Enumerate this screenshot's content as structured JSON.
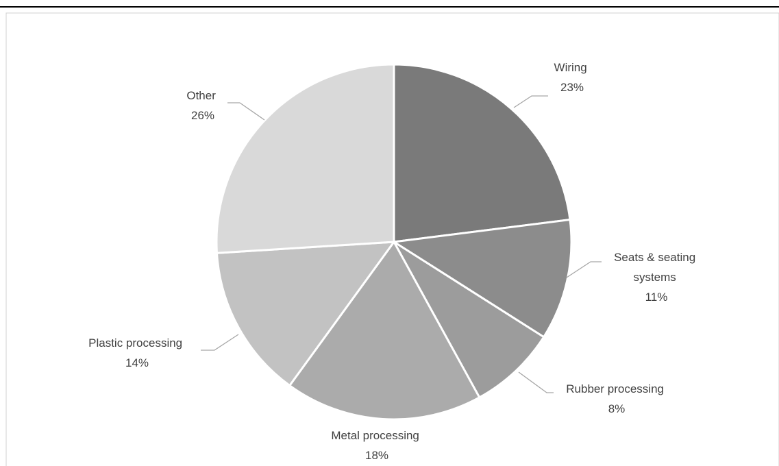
{
  "chart_data": {
    "type": "pie",
    "title": "",
    "slices": [
      {
        "label_lines": [
          "Wiring"
        ],
        "pct_label": "23%",
        "value": 23,
        "color": "#7a7a7a"
      },
      {
        "label_lines": [
          "Seats & seating",
          "systems"
        ],
        "pct_label": "11%",
        "value": 11,
        "color": "#8c8c8c"
      },
      {
        "label_lines": [
          "Rubber processing"
        ],
        "pct_label": "8%",
        "value": 8,
        "color": "#9c9c9c"
      },
      {
        "label_lines": [
          "Metal processing"
        ],
        "pct_label": "18%",
        "value": 18,
        "color": "#ababab"
      },
      {
        "label_lines": [
          "Plastic processing"
        ],
        "pct_label": "14%",
        "value": 14,
        "color": "#c2c2c2"
      },
      {
        "label_lines": [
          "Other"
        ],
        "pct_label": "26%",
        "value": 26,
        "color": "#d9d9d9"
      }
    ],
    "legend": "none",
    "start_angle": "12 o'clock",
    "direction": "clockwise"
  }
}
